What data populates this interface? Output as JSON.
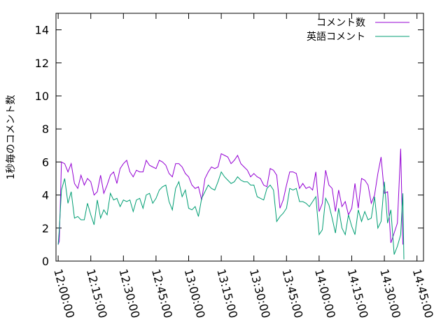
{
  "chart_data": {
    "type": "line",
    "title": "",
    "xlabel": "",
    "ylabel": "1秒毎のコメント数",
    "ylim": [
      0,
      15
    ],
    "yticks": [
      0,
      2,
      4,
      6,
      8,
      10,
      12,
      14
    ],
    "xlim": [
      "11:59:00",
      "14:48:00"
    ],
    "xticks": [
      "12:00:00",
      "12:15:00",
      "12:30:00",
      "12:45:00",
      "13:00:00",
      "13:15:00",
      "13:30:00",
      "13:45:00",
      "14:00:00",
      "14:15:00",
      "14:30:00",
      "14:45:00"
    ],
    "grid": false,
    "legend_position": "top-right",
    "series": [
      {
        "name": "コメント数",
        "color": "#9400d3",
        "points": [
          [
            "12:00:00",
            1.0
          ],
          [
            "12:00:30",
            1.2
          ],
          [
            "12:01:30",
            6.0
          ],
          [
            "12:03:00",
            5.9
          ],
          [
            "12:04:30",
            5.4
          ],
          [
            "12:06:00",
            5.9
          ],
          [
            "12:07:30",
            4.7
          ],
          [
            "12:09:00",
            4.4
          ],
          [
            "12:10:30",
            5.2
          ],
          [
            "12:12:00",
            4.6
          ],
          [
            "12:13:30",
            5.0
          ],
          [
            "12:15:00",
            4.8
          ],
          [
            "12:16:30",
            4.0
          ],
          [
            "12:18:00",
            4.2
          ],
          [
            "12:19:30",
            5.2
          ],
          [
            "12:21:00",
            4.1
          ],
          [
            "12:22:30",
            4.6
          ],
          [
            "12:24:00",
            5.2
          ],
          [
            "12:25:30",
            5.4
          ],
          [
            "12:27:00",
            4.7
          ],
          [
            "12:28:30",
            5.6
          ],
          [
            "12:30:00",
            5.9
          ],
          [
            "12:31:30",
            6.1
          ],
          [
            "12:33:00",
            5.4
          ],
          [
            "12:34:30",
            5.1
          ],
          [
            "12:36:00",
            5.5
          ],
          [
            "12:37:30",
            5.4
          ],
          [
            "12:39:00",
            5.4
          ],
          [
            "12:40:30",
            6.1
          ],
          [
            "12:42:00",
            5.8
          ],
          [
            "12:43:30",
            5.7
          ],
          [
            "12:45:00",
            5.6
          ],
          [
            "12:46:30",
            6.1
          ],
          [
            "12:48:00",
            6.0
          ],
          [
            "12:49:30",
            5.8
          ],
          [
            "12:51:00",
            5.3
          ],
          [
            "12:52:30",
            5.1
          ],
          [
            "12:54:00",
            5.9
          ],
          [
            "12:55:30",
            5.9
          ],
          [
            "12:57:00",
            5.7
          ],
          [
            "12:58:30",
            5.3
          ],
          [
            "13:00:00",
            5.1
          ],
          [
            "13:01:30",
            4.6
          ],
          [
            "13:03:00",
            4.4
          ],
          [
            "13:04:30",
            4.5
          ],
          [
            "13:06:00",
            3.7
          ],
          [
            "13:07:30",
            5.0
          ],
          [
            "13:09:00",
            5.4
          ],
          [
            "13:10:30",
            5.7
          ],
          [
            "13:12:00",
            5.6
          ],
          [
            "13:13:30",
            5.7
          ],
          [
            "13:15:00",
            6.5
          ],
          [
            "13:16:30",
            6.4
          ],
          [
            "13:18:00",
            6.3
          ],
          [
            "13:19:30",
            5.9
          ],
          [
            "13:21:00",
            6.1
          ],
          [
            "13:22:30",
            6.4
          ],
          [
            "13:24:00",
            5.9
          ],
          [
            "13:25:30",
            5.7
          ],
          [
            "13:27:00",
            5.5
          ],
          [
            "13:28:30",
            5.1
          ],
          [
            "13:30:00",
            5.3
          ],
          [
            "13:31:30",
            5.1
          ],
          [
            "13:33:00",
            5.0
          ],
          [
            "13:34:30",
            4.6
          ],
          [
            "13:36:00",
            4.5
          ],
          [
            "13:37:30",
            5.6
          ],
          [
            "13:39:00",
            5.5
          ],
          [
            "13:40:30",
            5.2
          ],
          [
            "13:42:00",
            3.2
          ],
          [
            "13:43:30",
            3.7
          ],
          [
            "13:45:00",
            4.6
          ],
          [
            "13:46:30",
            5.4
          ],
          [
            "13:48:00",
            5.4
          ],
          [
            "13:49:30",
            5.3
          ],
          [
            "13:51:00",
            4.4
          ],
          [
            "13:52:30",
            4.7
          ],
          [
            "13:54:00",
            4.4
          ],
          [
            "13:55:30",
            4.5
          ],
          [
            "13:57:00",
            4.3
          ],
          [
            "13:58:30",
            5.4
          ],
          [
            "14:00:00",
            3.0
          ],
          [
            "14:01:30",
            3.5
          ],
          [
            "14:03:00",
            5.5
          ],
          [
            "14:04:30",
            4.6
          ],
          [
            "14:06:00",
            4.4
          ],
          [
            "14:07:30",
            3.0
          ],
          [
            "14:09:00",
            4.3
          ],
          [
            "14:10:30",
            3.3
          ],
          [
            "14:12:00",
            3.6
          ],
          [
            "14:13:30",
            2.8
          ],
          [
            "14:15:00",
            3.2
          ],
          [
            "14:16:30",
            4.7
          ],
          [
            "14:18:00",
            3.2
          ],
          [
            "14:19:30",
            5.0
          ],
          [
            "14:21:00",
            4.9
          ],
          [
            "14:22:30",
            4.6
          ],
          [
            "14:24:00",
            3.5
          ],
          [
            "14:25:30",
            4.0
          ],
          [
            "14:27:00",
            5.3
          ],
          [
            "14:28:30",
            6.3
          ],
          [
            "14:30:00",
            4.1
          ],
          [
            "14:31:30",
            4.2
          ],
          [
            "14:33:00",
            1.1
          ],
          [
            "14:34:30",
            1.7
          ],
          [
            "14:36:00",
            2.3
          ],
          [
            "14:37:30",
            6.8
          ],
          [
            "14:38:30",
            1.0
          ]
        ]
      },
      {
        "name": "英語コメント",
        "color": "#009e73",
        "points": [
          [
            "12:00:00",
            1.0
          ],
          [
            "12:00:30",
            1.9
          ],
          [
            "12:01:30",
            4.3
          ],
          [
            "12:03:00",
            5.0
          ],
          [
            "12:04:30",
            3.5
          ],
          [
            "12:06:00",
            4.2
          ],
          [
            "12:07:30",
            2.6
          ],
          [
            "12:09:00",
            2.7
          ],
          [
            "12:10:30",
            2.5
          ],
          [
            "12:12:00",
            2.5
          ],
          [
            "12:13:30",
            3.5
          ],
          [
            "12:15:00",
            2.8
          ],
          [
            "12:16:30",
            2.2
          ],
          [
            "12:18:00",
            3.7
          ],
          [
            "12:19:30",
            2.6
          ],
          [
            "12:21:00",
            3.1
          ],
          [
            "12:22:30",
            2.8
          ],
          [
            "12:24:00",
            4.1
          ],
          [
            "12:25:30",
            3.7
          ],
          [
            "12:27:00",
            3.8
          ],
          [
            "12:28:30",
            3.3
          ],
          [
            "12:30:00",
            3.7
          ],
          [
            "12:31:30",
            3.6
          ],
          [
            "12:33:00",
            3.7
          ],
          [
            "12:34:30",
            3.0
          ],
          [
            "12:36:00",
            3.7
          ],
          [
            "12:37:30",
            3.8
          ],
          [
            "12:39:00",
            3.2
          ],
          [
            "12:40:30",
            4.0
          ],
          [
            "12:42:00",
            4.1
          ],
          [
            "12:43:30",
            3.5
          ],
          [
            "12:45:00",
            3.8
          ],
          [
            "12:46:30",
            4.3
          ],
          [
            "12:48:00",
            4.5
          ],
          [
            "12:49:30",
            4.6
          ],
          [
            "12:51:00",
            3.6
          ],
          [
            "12:52:30",
            3.1
          ],
          [
            "12:54:00",
            4.4
          ],
          [
            "12:55:30",
            4.8
          ],
          [
            "12:57:00",
            3.9
          ],
          [
            "12:58:30",
            4.3
          ],
          [
            "13:00:00",
            3.2
          ],
          [
            "13:01:30",
            3.1
          ],
          [
            "13:03:00",
            3.3
          ],
          [
            "13:04:30",
            2.7
          ],
          [
            "13:06:00",
            3.8
          ],
          [
            "13:07:30",
            4.2
          ],
          [
            "13:09:00",
            4.6
          ],
          [
            "13:10:30",
            4.4
          ],
          [
            "13:12:00",
            4.3
          ],
          [
            "13:13:30",
            4.8
          ],
          [
            "13:15:00",
            5.4
          ],
          [
            "13:16:30",
            5.1
          ],
          [
            "13:18:00",
            4.9
          ],
          [
            "13:19:30",
            4.7
          ],
          [
            "13:21:00",
            4.8
          ],
          [
            "13:22:30",
            5.1
          ],
          [
            "13:24:00",
            4.9
          ],
          [
            "13:25:30",
            4.8
          ],
          [
            "13:27:00",
            4.8
          ],
          [
            "13:28:30",
            4.6
          ],
          [
            "13:30:00",
            4.6
          ],
          [
            "13:31:30",
            3.9
          ],
          [
            "13:33:00",
            3.8
          ],
          [
            "13:34:30",
            3.7
          ],
          [
            "13:36:00",
            4.4
          ],
          [
            "13:37:30",
            4.6
          ],
          [
            "13:39:00",
            4.3
          ],
          [
            "13:40:30",
            2.4
          ],
          [
            "13:42:00",
            2.7
          ],
          [
            "13:43:30",
            2.9
          ],
          [
            "13:45:00",
            3.2
          ],
          [
            "13:46:30",
            4.4
          ],
          [
            "13:48:00",
            4.3
          ],
          [
            "13:49:30",
            4.4
          ],
          [
            "13:51:00",
            3.6
          ],
          [
            "13:52:30",
            3.6
          ],
          [
            "13:54:00",
            3.5
          ],
          [
            "13:55:30",
            3.3
          ],
          [
            "13:57:00",
            3.6
          ],
          [
            "13:58:30",
            3.9
          ],
          [
            "14:00:00",
            1.6
          ],
          [
            "14:01:30",
            1.9
          ],
          [
            "14:03:00",
            3.8
          ],
          [
            "14:04:30",
            3.4
          ],
          [
            "14:06:00",
            2.6
          ],
          [
            "14:07:30",
            1.7
          ],
          [
            "14:09:00",
            3.2
          ],
          [
            "14:10:30",
            2.0
          ],
          [
            "14:12:00",
            1.6
          ],
          [
            "14:13:30",
            2.8
          ],
          [
            "14:15:00",
            2.1
          ],
          [
            "14:16:30",
            1.6
          ],
          [
            "14:18:00",
            3.1
          ],
          [
            "14:19:30",
            2.4
          ],
          [
            "14:21:00",
            3.0
          ],
          [
            "14:22:30",
            2.5
          ],
          [
            "14:24:00",
            2.6
          ],
          [
            "14:25:30",
            3.9
          ],
          [
            "14:27:00",
            2.0
          ],
          [
            "14:28:30",
            2.4
          ],
          [
            "14:30:00",
            4.8
          ],
          [
            "14:31:30",
            2.3
          ],
          [
            "14:33:00",
            3.1
          ],
          [
            "14:34:30",
            0.4
          ],
          [
            "14:36:00",
            0.9
          ],
          [
            "14:37:30",
            1.6
          ],
          [
            "14:38:30",
            4.1
          ],
          [
            "14:39:00",
            0.1
          ]
        ]
      }
    ]
  }
}
